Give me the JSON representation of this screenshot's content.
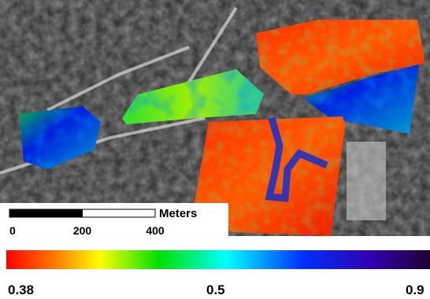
{
  "scale_bar": {
    "unit": "Meters",
    "ticks": [
      0,
      200,
      400
    ]
  },
  "colorbar": {
    "labels": [
      "0.38",
      "0.5",
      "0.9"
    ]
  }
}
